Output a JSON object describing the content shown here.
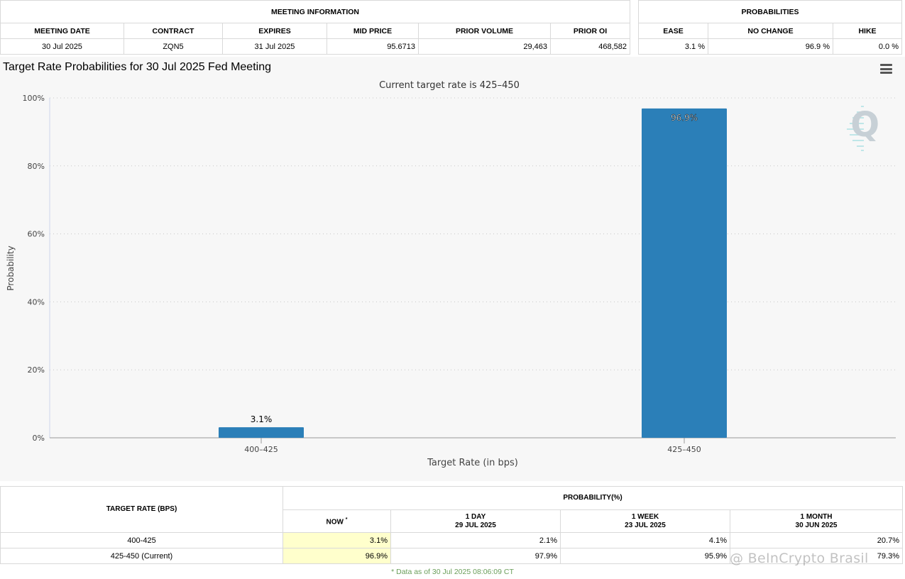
{
  "meeting_info": {
    "group_label": "MEETING INFORMATION",
    "headers": [
      "MEETING DATE",
      "CONTRACT",
      "EXPIRES",
      "MID PRICE",
      "PRIOR VOLUME",
      "PRIOR OI"
    ],
    "row": [
      "30 Jul 2025",
      "ZQN5",
      "31 Jul 2025",
      "95.6713",
      "29,463",
      "468,582"
    ]
  },
  "probabilities": {
    "group_label": "PROBABILITIES",
    "headers": [
      "EASE",
      "NO CHANGE",
      "HIKE"
    ],
    "row": [
      "3.1 %",
      "96.9 %",
      "0.0 %"
    ]
  },
  "chart_data": {
    "type": "bar",
    "title": "Target Rate Probabilities for 30 Jul 2025 Fed Meeting",
    "subtitle": "Current target rate is 425–450",
    "xlabel": "Target Rate (in bps)",
    "ylabel": "Probability",
    "categories": [
      "400–425",
      "425–450"
    ],
    "values": [
      3.1,
      96.9
    ],
    "data_labels": [
      "3.1%",
      "96.9%"
    ],
    "ylim": [
      0,
      100
    ],
    "yticks": [
      0,
      20,
      40,
      60,
      80,
      100
    ],
    "ytick_labels": [
      "0%",
      "20%",
      "40%",
      "60%",
      "80%",
      "100%"
    ],
    "grid": true,
    "bar_color": "#2b7fb8"
  },
  "rates_table": {
    "target_header": "TARGET RATE (BPS)",
    "prob_header": "PROBABILITY(%)",
    "now_label": "NOW",
    "now_mark": "*",
    "cols": [
      {
        "label": "1 DAY",
        "date": "29 JUL 2025"
      },
      {
        "label": "1 WEEK",
        "date": "23 JUL 2025"
      },
      {
        "label": "1 MONTH",
        "date": "30 JUN 2025"
      }
    ],
    "rows": [
      {
        "rate": "400-425",
        "now": "3.1%",
        "day": "2.1%",
        "week": "4.1%",
        "month": "20.7%"
      },
      {
        "rate": "425-450 (Current)",
        "now": "96.9%",
        "day": "97.9%",
        "week": "95.9%",
        "month": "79.3%"
      }
    ]
  },
  "footnote": "* Data as of 30 Jul 2025 08:06:09 CT",
  "watermark": "@ BeInCrypto Brasil",
  "logo_letter": "Q"
}
